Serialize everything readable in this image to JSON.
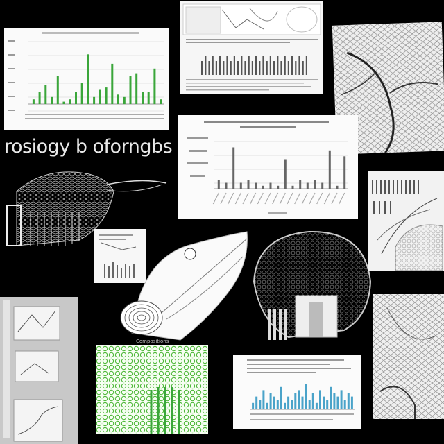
{
  "collage_title": "rosiogy b oforngbs",
  "left_caption": "Compositions",
  "right_caption": "",
  "colors": {
    "background": "#000000",
    "card": "#f4f4f4",
    "green_bars": "#3aa63a",
    "gray_bars": "#555555",
    "blue_bars": "#4aa3c9",
    "green_tissue": "#4fb83a"
  },
  "chart_data": [
    {
      "type": "bar",
      "title": "",
      "categories": [
        "1",
        "2",
        "3",
        "4",
        "5",
        "6",
        "7",
        "8",
        "9",
        "10",
        "11",
        "12",
        "13",
        "14",
        "15",
        "16",
        "17",
        "18",
        "19",
        "20",
        "21",
        "22"
      ],
      "series": [
        {
          "values": [
            2,
            5,
            8,
            3,
            12,
            1,
            2,
            5,
            9,
            21,
            3,
            6,
            7,
            17,
            4,
            3,
            12,
            13,
            5,
            5,
            15,
            2
          ]
        }
      ],
      "color": "#3aa63a",
      "ylim": [
        0,
        24
      ]
    },
    {
      "type": "bar",
      "title": "",
      "categories": [
        "1",
        "2",
        "3",
        "4",
        "5",
        "6",
        "7",
        "8",
        "9",
        "10",
        "11",
        "12",
        "13",
        "14",
        "15",
        "16",
        "17",
        "18"
      ],
      "series": [
        {
          "values": [
            3,
            2,
            14,
            2,
            3,
            2,
            1,
            2,
            1,
            10,
            1,
            3,
            2,
            3,
            2,
            13,
            1,
            11
          ]
        }
      ],
      "color": "#666666",
      "ylim": [
        0,
        16
      ]
    },
    {
      "type": "bar",
      "title": "",
      "categories": [
        "1",
        "2",
        "3",
        "4",
        "5",
        "6",
        "7",
        "8",
        "9",
        "10",
        "11",
        "12",
        "13",
        "14",
        "15",
        "16",
        "17",
        "18",
        "19",
        "20",
        "21",
        "22",
        "23",
        "24",
        "25",
        "26",
        "27",
        "28",
        "29"
      ],
      "series": [
        {
          "values": [
            2,
            4,
            3,
            6,
            2,
            5,
            4,
            3,
            7,
            2,
            4,
            3,
            5,
            6,
            4,
            8,
            3,
            5,
            2,
            6,
            4,
            3,
            7,
            5,
            4,
            6,
            3,
            5,
            4
          ]
        }
      ],
      "color": "#4aa3c9",
      "ylim": [
        0,
        10
      ]
    }
  ]
}
